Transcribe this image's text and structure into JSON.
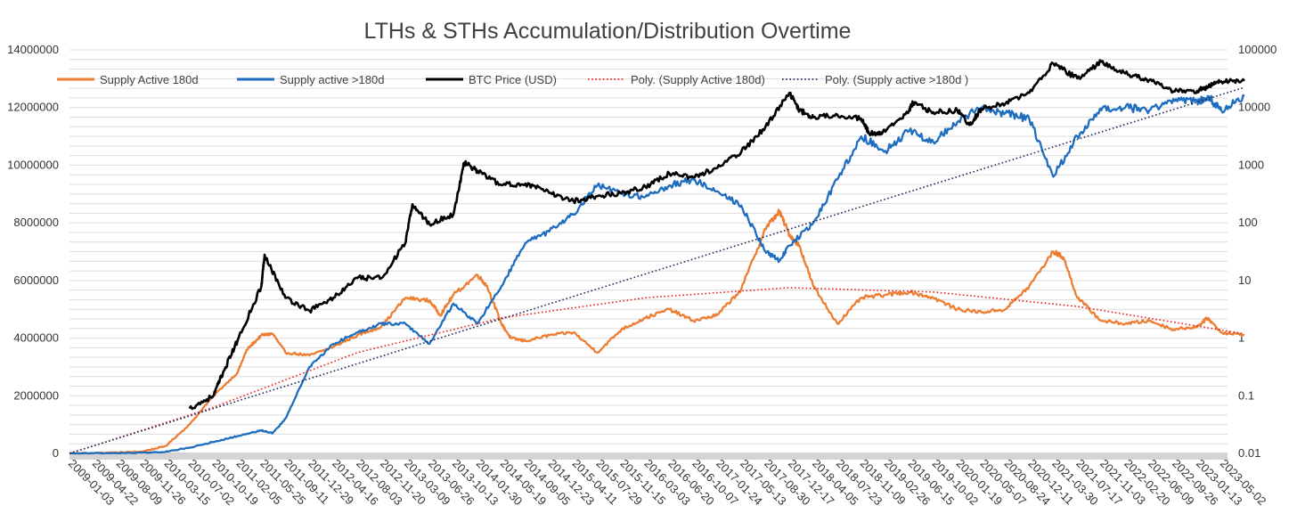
{
  "chart_data": {
    "type": "line",
    "title": "LTHs & STHs Accumulation/Distribution Overtime",
    "xlabel": "",
    "ylabel": "",
    "y_left": {
      "min": 0,
      "max": 14000000,
      "ticks": [
        "0",
        "2000000",
        "4000000",
        "6000000",
        "8000000",
        "10000000",
        "12000000",
        "14000000"
      ]
    },
    "y_right": {
      "scale": "log",
      "min": 0.01,
      "max": 100000,
      "ticks": [
        "0.01",
        "0.1",
        "1",
        "10",
        "100",
        "1000",
        "10000",
        "100000"
      ]
    },
    "x_ticks": [
      "2009-01-03",
      "2009-04-22",
      "2009-08-09",
      "2009-11-26",
      "2010-03-15",
      "2010-07-02",
      "2010-10-19",
      "2011-02-05",
      "2011-05-25",
      "2011-09-11",
      "2011-12-29",
      "2012-04-16",
      "2012-08-03",
      "2012-11-20",
      "2013-03-09",
      "2013-06-26",
      "2013-10-13",
      "2014-01-30",
      "2014-05-19",
      "2014-09-05",
      "2014-12-23",
      "2015-04-11",
      "2015-07-29",
      "2015-11-15",
      "2016-03-03",
      "2016-06-20",
      "2016-10-07",
      "2017-01-24",
      "2017-05-13",
      "2017-08-30",
      "2017-12-17",
      "2018-04-05",
      "2018-07-23",
      "2018-11-09",
      "2019-02-26",
      "2019-06-15",
      "2019-10-02",
      "2020-01-19",
      "2020-05-07",
      "2020-08-24",
      "2020-12-11",
      "2021-03-30",
      "2021-07-17",
      "2021-11-03",
      "2022-02-20",
      "2022-06-09",
      "2022-09-26",
      "2023-01-13",
      "2023-05-02"
    ],
    "legend_position": "top",
    "grid": true,
    "series": [
      {
        "name": "Supply Active 180d",
        "axis": "left",
        "color": "#ED7D31",
        "style": "solid",
        "points": [
          [
            "2009-01-03",
            0
          ],
          [
            "2009-08-09",
            30000
          ],
          [
            "2009-11-26",
            60000
          ],
          [
            "2010-03-15",
            250000
          ],
          [
            "2010-07-02",
            1000000
          ],
          [
            "2010-10-19",
            2000000
          ],
          [
            "2011-02-05",
            2800000
          ],
          [
            "2011-03-20",
            3600000
          ],
          [
            "2011-05-25",
            4100000
          ],
          [
            "2011-07-15",
            4150000
          ],
          [
            "2011-09-11",
            3500000
          ],
          [
            "2011-12-29",
            3400000
          ],
          [
            "2012-04-16",
            3700000
          ],
          [
            "2012-08-03",
            4100000
          ],
          [
            "2012-11-20",
            4400000
          ],
          [
            "2013-03-09",
            5400000
          ],
          [
            "2013-06-26",
            5300000
          ],
          [
            "2013-08-15",
            4800000
          ],
          [
            "2013-10-13",
            5500000
          ],
          [
            "2014-01-30",
            6200000
          ],
          [
            "2014-03-15",
            5800000
          ],
          [
            "2014-05-19",
            4500000
          ],
          [
            "2014-07-01",
            4000000
          ],
          [
            "2014-09-05",
            3900000
          ],
          [
            "2014-12-23",
            4100000
          ],
          [
            "2015-04-11",
            4200000
          ],
          [
            "2015-07-29",
            3500000
          ],
          [
            "2015-11-15",
            4300000
          ],
          [
            "2016-03-03",
            4700000
          ],
          [
            "2016-06-20",
            5000000
          ],
          [
            "2016-10-07",
            4600000
          ],
          [
            "2017-01-24",
            4800000
          ],
          [
            "2017-05-13",
            5700000
          ],
          [
            "2017-08-30",
            7800000
          ],
          [
            "2017-11-01",
            8400000
          ],
          [
            "2017-12-17",
            7600000
          ],
          [
            "2018-02-01",
            7200000
          ],
          [
            "2018-04-05",
            5800000
          ],
          [
            "2018-07-23",
            4500000
          ],
          [
            "2018-11-09",
            5400000
          ],
          [
            "2019-02-26",
            5500000
          ],
          [
            "2019-06-15",
            5600000
          ],
          [
            "2019-10-02",
            5400000
          ],
          [
            "2020-01-19",
            5000000
          ],
          [
            "2020-05-07",
            4900000
          ],
          [
            "2020-08-24",
            5000000
          ],
          [
            "2020-12-11",
            5800000
          ],
          [
            "2021-03-30",
            7000000
          ],
          [
            "2021-05-15",
            6800000
          ],
          [
            "2021-07-17",
            5400000
          ],
          [
            "2021-11-03",
            4600000
          ],
          [
            "2022-02-20",
            4500000
          ],
          [
            "2022-06-09",
            4600000
          ],
          [
            "2022-09-26",
            4300000
          ],
          [
            "2023-01-13",
            4400000
          ],
          [
            "2023-03-01",
            4700000
          ],
          [
            "2023-05-02",
            4200000
          ],
          [
            "2023-08-15",
            4100000
          ]
        ]
      },
      {
        "name": "Supply active >180d",
        "axis": "left",
        "color": "#1F6DBF",
        "style": "solid",
        "points": [
          [
            "2009-01-03",
            0
          ],
          [
            "2009-08-09",
            10000
          ],
          [
            "2010-03-15",
            50000
          ],
          [
            "2010-07-02",
            200000
          ],
          [
            "2010-10-19",
            400000
          ],
          [
            "2011-02-05",
            600000
          ],
          [
            "2011-05-25",
            800000
          ],
          [
            "2011-07-15",
            700000
          ],
          [
            "2011-09-11",
            1200000
          ],
          [
            "2011-12-29",
            3000000
          ],
          [
            "2012-04-16",
            3800000
          ],
          [
            "2012-08-03",
            4200000
          ],
          [
            "2012-11-20",
            4500000
          ],
          [
            "2013-03-09",
            4500000
          ],
          [
            "2013-06-26",
            3800000
          ],
          [
            "2013-10-13",
            5200000
          ],
          [
            "2014-01-30",
            4500000
          ],
          [
            "2014-05-19",
            5800000
          ],
          [
            "2014-09-05",
            7300000
          ],
          [
            "2014-12-23",
            7700000
          ],
          [
            "2015-04-11",
            8300000
          ],
          [
            "2015-07-29",
            9300000
          ],
          [
            "2015-11-15",
            9000000
          ],
          [
            "2016-03-03",
            8900000
          ],
          [
            "2016-06-20",
            9300000
          ],
          [
            "2016-10-07",
            9500000
          ],
          [
            "2017-01-24",
            9100000
          ],
          [
            "2017-05-13",
            8600000
          ],
          [
            "2017-08-30",
            7000000
          ],
          [
            "2017-11-01",
            6700000
          ],
          [
            "2017-12-17",
            7200000
          ],
          [
            "2018-04-05",
            8000000
          ],
          [
            "2018-07-23",
            9500000
          ],
          [
            "2018-11-09",
            11000000
          ],
          [
            "2019-02-26",
            10500000
          ],
          [
            "2019-06-15",
            11200000
          ],
          [
            "2019-10-02",
            10800000
          ],
          [
            "2020-01-19",
            11500000
          ],
          [
            "2020-05-07",
            12000000
          ],
          [
            "2020-08-24",
            11800000
          ],
          [
            "2020-12-11",
            11600000
          ],
          [
            "2021-03-30",
            9600000
          ],
          [
            "2021-07-17",
            11000000
          ],
          [
            "2021-11-03",
            11900000
          ],
          [
            "2022-02-20",
            12000000
          ],
          [
            "2022-06-09",
            11900000
          ],
          [
            "2022-09-26",
            12300000
          ],
          [
            "2023-01-13",
            12200000
          ],
          [
            "2023-03-01",
            12400000
          ],
          [
            "2023-05-02",
            11900000
          ],
          [
            "2023-08-15",
            12400000
          ]
        ]
      },
      {
        "name": "BTC Price (USD)",
        "axis": "right",
        "color": "#000000",
        "style": "solid",
        "points": [
          [
            "2010-07-02",
            0.06
          ],
          [
            "2010-10-19",
            0.1
          ],
          [
            "2010-12-01",
            0.25
          ],
          [
            "2011-02-05",
            0.9
          ],
          [
            "2011-05-25",
            8
          ],
          [
            "2011-06-08",
            28
          ],
          [
            "2011-09-11",
            5
          ],
          [
            "2011-12-29",
            3
          ],
          [
            "2012-04-16",
            5
          ],
          [
            "2012-08-03",
            11
          ],
          [
            "2012-11-20",
            11
          ],
          [
            "2013-03-09",
            45
          ],
          [
            "2013-04-10",
            210
          ],
          [
            "2013-06-26",
            95
          ],
          [
            "2013-10-13",
            140
          ],
          [
            "2013-12-01",
            1100
          ],
          [
            "2014-01-30",
            800
          ],
          [
            "2014-05-19",
            450
          ],
          [
            "2014-09-05",
            480
          ],
          [
            "2014-12-23",
            330
          ],
          [
            "2015-04-11",
            240
          ],
          [
            "2015-07-29",
            290
          ],
          [
            "2015-11-15",
            330
          ],
          [
            "2016-03-03",
            420
          ],
          [
            "2016-06-20",
            720
          ],
          [
            "2016-10-07",
            620
          ],
          [
            "2017-01-24",
            900
          ],
          [
            "2017-05-13",
            1700
          ],
          [
            "2017-08-30",
            4600
          ],
          [
            "2017-12-17",
            18000
          ],
          [
            "2018-02-01",
            9000
          ],
          [
            "2018-04-05",
            6800
          ],
          [
            "2018-07-23",
            7500
          ],
          [
            "2018-11-09",
            6400
          ],
          [
            "2018-12-15",
            3500
          ],
          [
            "2019-02-26",
            3800
          ],
          [
            "2019-06-15",
            9000
          ],
          [
            "2019-07-01",
            12000
          ],
          [
            "2019-10-02",
            8300
          ],
          [
            "2020-01-19",
            8900
          ],
          [
            "2020-03-15",
            5000
          ],
          [
            "2020-05-07",
            9500
          ],
          [
            "2020-08-24",
            11700
          ],
          [
            "2020-12-11",
            18000
          ],
          [
            "2021-03-30",
            58000
          ],
          [
            "2021-07-17",
            32000
          ],
          [
            "2021-11-03",
            62000
          ],
          [
            "2022-02-20",
            39000
          ],
          [
            "2022-06-09",
            30000
          ],
          [
            "2022-09-26",
            19000
          ],
          [
            "2023-01-13",
            19500
          ],
          [
            "2023-03-01",
            23000
          ],
          [
            "2023-05-02",
            28500
          ],
          [
            "2023-08-15",
            29000
          ]
        ]
      },
      {
        "name": "Poly. (Supply Active 180d)",
        "axis": "left",
        "color": "#E8201C",
        "style": "dotted",
        "points": [
          [
            "2009-01-03",
            0
          ],
          [
            "2010-10-19",
            1600000
          ],
          [
            "2012-08-03",
            3500000
          ],
          [
            "2014-05-19",
            4700000
          ],
          [
            "2016-03-03",
            5400000
          ],
          [
            "2017-12-17",
            5750000
          ],
          [
            "2019-10-02",
            5600000
          ],
          [
            "2021-07-17",
            5100000
          ],
          [
            "2023-08-15",
            4150000
          ]
        ]
      },
      {
        "name": "Poly. (Supply active >180d )",
        "axis": "left",
        "color": "#1F2A5C",
        "style": "dotted",
        "points": [
          [
            "2009-01-03",
            0
          ],
          [
            "2023-08-15",
            12700000
          ]
        ]
      }
    ]
  }
}
